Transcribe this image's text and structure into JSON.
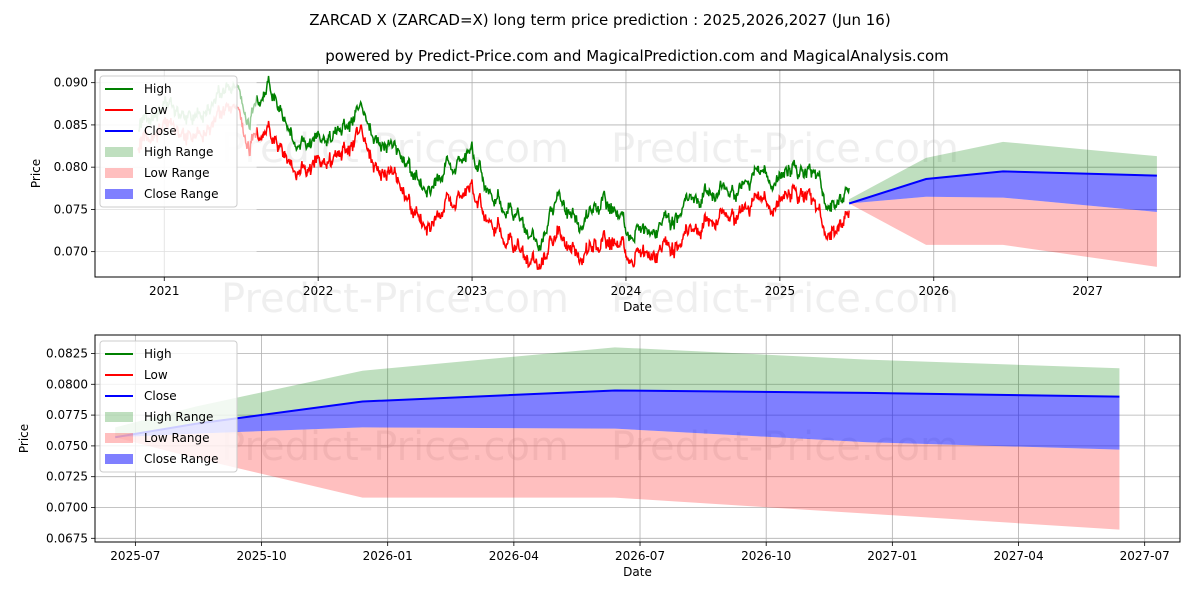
{
  "title": "ZARCAD X (ZARCAD=X) long term price prediction : 2025,2026,2027 (Jun 16)",
  "subtitle": "powered by Predict-Price.com and MagicalPrediction.com and MagicalAnalysis.com",
  "watermark": "Predict-Price.com",
  "colors": {
    "high": "#008000",
    "low": "#ff0000",
    "close": "#0000ff",
    "high_range": "#008000",
    "low_range": "#ff0000",
    "close_range": "#0000ff",
    "grid": "#b0b0b0"
  },
  "legend": [
    "High",
    "Low",
    "Close",
    "High Range",
    "Low Range",
    "Close Range"
  ],
  "chart_data": [
    {
      "type": "line",
      "name": "long-term",
      "xlabel": "Date",
      "ylabel": "Price",
      "xlim": [
        2020.55,
        2027.6
      ],
      "ylim": [
        0.067,
        0.0915
      ],
      "grid": true,
      "legend_position": "upper-left",
      "x_ticks": [
        2021,
        2022,
        2023,
        2024,
        2025,
        2026,
        2027
      ],
      "x_tick_labels": [
        "2021",
        "2022",
        "2023",
        "2024",
        "2025",
        "2026",
        "2027"
      ],
      "y_ticks": [
        0.07,
        0.075,
        0.08,
        0.085,
        0.09
      ],
      "y_tick_labels": [
        "0.070",
        "0.075",
        "0.080",
        "0.085",
        "0.090"
      ],
      "history_keypoints": {
        "x": [
          2020.83,
          2021.0,
          2021.15,
          2021.3,
          2021.45,
          2021.55,
          2021.68,
          2021.85,
          2022.0,
          2022.15,
          2022.28,
          2022.38,
          2022.5,
          2022.6,
          2022.75,
          2022.9,
          2023.0,
          2023.15,
          2023.3,
          2023.45,
          2023.55,
          2023.7,
          2023.85,
          2024.0,
          2024.2,
          2024.4,
          2024.55,
          2024.7,
          2024.9,
          2025.0,
          2025.1,
          2025.2,
          2025.25,
          2025.3,
          2025.45
        ],
        "high": [
          0.085,
          0.087,
          0.0855,
          0.0875,
          0.09,
          0.0855,
          0.0895,
          0.083,
          0.083,
          0.084,
          0.087,
          0.0825,
          0.0825,
          0.079,
          0.078,
          0.0805,
          0.081,
          0.076,
          0.0745,
          0.0705,
          0.076,
          0.0735,
          0.076,
          0.0725,
          0.0725,
          0.076,
          0.0775,
          0.078,
          0.08,
          0.0785,
          0.079,
          0.0795,
          0.078,
          0.0745,
          0.0775
        ],
        "low": [
          0.083,
          0.085,
          0.0835,
          0.0855,
          0.088,
          0.083,
          0.0845,
          0.08,
          0.0805,
          0.0815,
          0.0845,
          0.0795,
          0.0795,
          0.075,
          0.074,
          0.0765,
          0.077,
          0.073,
          0.071,
          0.0685,
          0.072,
          0.07,
          0.0715,
          0.07,
          0.07,
          0.0725,
          0.0745,
          0.0755,
          0.077,
          0.076,
          0.0765,
          0.077,
          0.074,
          0.0715,
          0.075
        ]
      },
      "forecast_x": [
        2025.45,
        2025.95,
        2026.45,
        2027.45
      ],
      "forecast_close": [
        0.0757,
        0.0786,
        0.0795,
        0.079
      ],
      "high_range": {
        "upper": [
          0.0762,
          0.0811,
          0.083,
          0.0813
        ],
        "lower": [
          0.0757,
          0.0786,
          0.0795,
          0.079
        ]
      },
      "low_range": {
        "upper": [
          0.0757,
          0.0765,
          0.0764,
          0.0747
        ],
        "lower": [
          0.0757,
          0.0708,
          0.0708,
          0.0682
        ]
      },
      "close_range": {
        "upper": [
          0.0757,
          0.0786,
          0.0795,
          0.079
        ],
        "lower": [
          0.0757,
          0.0765,
          0.0764,
          0.0747
        ]
      }
    },
    {
      "type": "line",
      "name": "forecast-zoom",
      "xlabel": "Date",
      "ylabel": "Price",
      "xlim": [
        2025.42,
        2027.57
      ],
      "ylim": [
        0.0672,
        0.084
      ],
      "grid": true,
      "legend_position": "upper-left",
      "x_ticks": [
        2025.5,
        2025.75,
        2026.0,
        2026.25,
        2026.5,
        2026.75,
        2027.0,
        2027.25,
        2027.5
      ],
      "x_tick_labels": [
        "2025-07",
        "2025-10",
        "2026-01",
        "2026-04",
        "2026-07",
        "2026-10",
        "2027-01",
        "2027-04",
        "2027-07"
      ],
      "y_ticks": [
        0.0675,
        0.07,
        0.0725,
        0.075,
        0.0775,
        0.08,
        0.0825
      ],
      "y_tick_labels": [
        "0.0675",
        "0.0700",
        "0.0725",
        "0.0750",
        "0.0775",
        "0.0800",
        "0.0825"
      ],
      "forecast_x": [
        2025.46,
        2025.62,
        2025.95,
        2026.45,
        2026.95,
        2027.45
      ],
      "forecast_close": [
        0.0757,
        0.0768,
        0.0786,
        0.0795,
        0.0793,
        0.079
      ],
      "high_range": {
        "upper": [
          0.0765,
          0.0782,
          0.0811,
          0.083,
          0.082,
          0.0813
        ],
        "lower": [
          0.0757,
          0.0768,
          0.0786,
          0.0795,
          0.0793,
          0.079
        ]
      },
      "low_range": {
        "upper": [
          0.0757,
          0.076,
          0.0765,
          0.0764,
          0.0753,
          0.0747
        ],
        "lower": [
          0.0757,
          0.074,
          0.0708,
          0.0708,
          0.0695,
          0.0682
        ]
      },
      "close_range": {
        "upper": [
          0.0757,
          0.0768,
          0.0786,
          0.0795,
          0.0793,
          0.079
        ],
        "lower": [
          0.0757,
          0.076,
          0.0765,
          0.0764,
          0.0753,
          0.0747
        ]
      }
    }
  ]
}
